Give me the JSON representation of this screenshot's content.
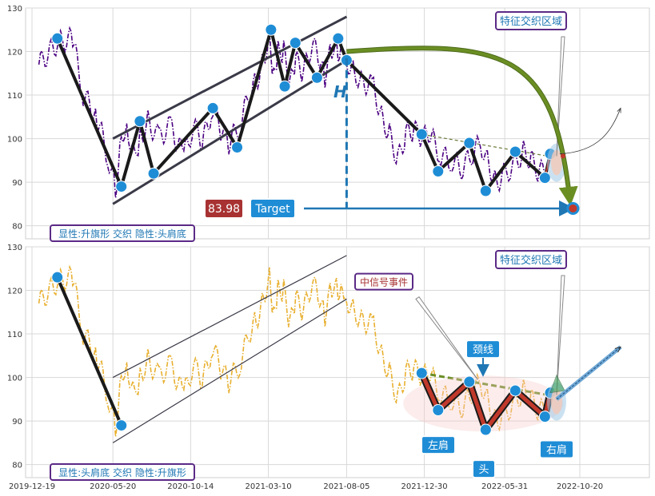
{
  "chart_data": [
    {
      "type": "line",
      "panel": "top",
      "ylim": [
        77,
        130
      ],
      "yticks": [
        80,
        90,
        100,
        110,
        120,
        130
      ],
      "xticks": [
        "2019-12-19",
        "2020-05-20",
        "2020-10-14",
        "2021-03-10",
        "2021-08-05",
        "2021-12-30",
        "2022-05-31",
        "2022-10-20"
      ],
      "grid": true,
      "series": [
        {
          "role": "price",
          "color": "#4b0082",
          "style": "dash-dot",
          "x": [
            "2020-01-01",
            "2020-02-05",
            "2020-03-05",
            "2020-03-25",
            "2020-04-20",
            "2020-05-10",
            "2020-05-25",
            "2020-06-05",
            "2020-06-15",
            "2020-06-30",
            "2020-07-10",
            "2020-07-25",
            "2020-08-15",
            "2020-09-05",
            "2020-10-01",
            "2020-10-20",
            "2020-11-05",
            "2020-11-25",
            "2020-12-10",
            "2020-12-25",
            "2021-01-15",
            "2021-02-01",
            "2021-02-15",
            "2021-03-01",
            "2021-03-12",
            "2021-03-20",
            "2021-03-28",
            "2021-04-08",
            "2021-04-20",
            "2021-05-01",
            "2021-05-15",
            "2021-06-01",
            "2021-06-15",
            "2021-06-25",
            "2021-07-08",
            "2021-07-20",
            "2021-07-28",
            "2021-08-05",
            "2021-08-20",
            "2021-09-05",
            "2021-09-25",
            "2021-10-10",
            "2021-10-25",
            "2021-11-10",
            "2021-11-25",
            "2021-12-10",
            "2021-12-25",
            "2022-01-10",
            "2022-01-30",
            "2022-02-20",
            "2022-03-10",
            "2022-03-28",
            "2022-04-15",
            "2022-05-01",
            "2022-05-15",
            "2022-06-01",
            "2022-06-20",
            "2022-07-05",
            "2022-07-20",
            "2022-08-05",
            "2022-08-20",
            "2022-09-01"
          ],
          "y": [
            117,
            122,
            123,
            110,
            105,
            96,
            88,
            101,
            103,
            96,
            100,
            104,
            100,
            103,
            96,
            103,
            99,
            107,
            102,
            99,
            103,
            110,
            113,
            118,
            124,
            114,
            120,
            120,
            112,
            118,
            115,
            122,
            118,
            114,
            121,
            120,
            122,
            118,
            115,
            113,
            112,
            105,
            101,
            95,
            101,
            102,
            100,
            101,
            96,
            95,
            93,
            96,
            99,
            94,
            90,
            92,
            94,
            97,
            95,
            92,
            94,
            96
          ]
        }
      ],
      "pattern_lines": [
        {
          "role": "flag-upper",
          "x": [
            "2020-05-20",
            "2021-08-05"
          ],
          "y": [
            100,
            128
          ]
        },
        {
          "role": "flag-lower",
          "x": [
            "2020-05-20",
            "2021-08-05"
          ],
          "y": [
            85,
            118
          ]
        },
        {
          "role": "neckline",
          "x": [
            "2021-12-25",
            "2022-08-20"
          ],
          "y": [
            101,
            96
          ]
        }
      ],
      "pivots": {
        "x": [
          "2020-02-05",
          "2020-06-05",
          "2020-07-10",
          "2020-08-05",
          "2020-11-25",
          "2021-01-10",
          "2021-03-15",
          "2021-04-10",
          "2021-04-30",
          "2021-06-10",
          "2021-07-20",
          "2021-08-05",
          "2021-12-25",
          "2022-01-25",
          "2022-03-25",
          "2022-04-25",
          "2022-06-20",
          "2022-08-15",
          "2022-08-25"
        ],
        "y": [
          123,
          89,
          104,
          92,
          107,
          98,
          125,
          112,
          122,
          114,
          123,
          118,
          101,
          92.5,
          99,
          88,
          97,
          91,
          96.5
        ]
      },
      "target": {
        "label": "Target",
        "value_label": "83.98",
        "y": 83.98,
        "x_end": "2022-10-01"
      },
      "measure_label": "H",
      "annotations": [
        "特征交织区域"
      ],
      "legend_box": "显性:升旗形 交织 隐性:头肩底"
    },
    {
      "type": "line",
      "panel": "bottom",
      "ylim": [
        77,
        130
      ],
      "yticks": [
        80,
        90,
        100,
        110,
        120,
        130
      ],
      "xticks": [
        "2019-12-19",
        "2020-05-20",
        "2020-10-14",
        "2021-03-10",
        "2021-08-05",
        "2021-12-30",
        "2022-05-31",
        "2022-10-20"
      ],
      "grid": true,
      "series": [
        {
          "role": "price",
          "color": "#e8b030",
          "style": "dash-dot",
          "x": [
            "2020-01-01",
            "2020-02-05",
            "2020-03-05",
            "2020-03-25",
            "2020-04-20",
            "2020-05-10",
            "2020-05-25",
            "2020-06-05",
            "2020-06-15",
            "2020-06-30",
            "2020-07-10",
            "2020-07-25",
            "2020-08-15",
            "2020-09-05",
            "2020-10-01",
            "2020-10-20",
            "2020-11-05",
            "2020-11-25",
            "2020-12-10",
            "2020-12-25",
            "2021-01-15",
            "2021-02-01",
            "2021-02-15",
            "2021-03-01",
            "2021-03-12",
            "2021-03-20",
            "2021-03-28",
            "2021-04-08",
            "2021-04-20",
            "2021-05-01",
            "2021-05-15",
            "2021-06-01",
            "2021-06-15",
            "2021-06-25",
            "2021-07-08",
            "2021-07-20",
            "2021-07-28",
            "2021-08-05",
            "2021-08-20",
            "2021-09-05",
            "2021-09-25",
            "2021-10-10",
            "2021-10-25",
            "2021-11-10",
            "2021-11-25",
            "2021-12-10",
            "2021-12-25",
            "2022-01-10",
            "2022-01-30",
            "2022-02-20",
            "2022-03-10",
            "2022-03-28",
            "2022-04-15",
            "2022-05-01",
            "2022-05-15",
            "2022-06-01",
            "2022-06-20",
            "2022-07-05",
            "2022-07-20",
            "2022-08-05",
            "2022-08-20",
            "2022-09-01"
          ],
          "y": [
            117,
            122,
            123,
            110,
            105,
            96,
            88,
            101,
            103,
            96,
            100,
            104,
            100,
            103,
            96,
            103,
            99,
            107,
            102,
            99,
            103,
            110,
            113,
            118,
            124,
            114,
            120,
            120,
            112,
            118,
            115,
            122,
            118,
            114,
            121,
            120,
            122,
            118,
            115,
            113,
            112,
            105,
            101,
            95,
            101,
            102,
            100,
            101,
            96,
            95,
            93,
            96,
            99,
            94,
            90,
            92,
            94,
            97,
            95,
            92,
            94,
            96
          ]
        }
      ],
      "pattern_lines": [
        {
          "role": "flag-upper",
          "x": [
            "2020-05-20",
            "2021-08-05"
          ],
          "y": [
            100,
            128
          ]
        },
        {
          "role": "flag-lower",
          "x": [
            "2020-05-20",
            "2021-08-05"
          ],
          "y": [
            85,
            118
          ]
        },
        {
          "role": "neckline",
          "x": [
            "2021-12-25",
            "2022-08-20"
          ],
          "y": [
            101,
            96
          ]
        }
      ],
      "pivots": {
        "x": [
          "2020-02-05",
          "2020-06-05",
          "2021-12-25",
          "2022-01-25",
          "2022-03-25",
          "2022-04-25",
          "2022-06-20",
          "2022-08-15",
          "2022-08-25"
        ],
        "y": [
          123,
          89,
          101,
          92.5,
          99,
          88,
          97,
          91,
          96.5
        ]
      },
      "shoulder_labels": {
        "left": "左肩",
        "head": "头",
        "right": "右肩",
        "neck": "颈线"
      },
      "annotations": [
        "特征交织区域",
        "中信号事件"
      ],
      "legend_box": "显性:头肩底 交织 隐性:升旗形"
    }
  ]
}
